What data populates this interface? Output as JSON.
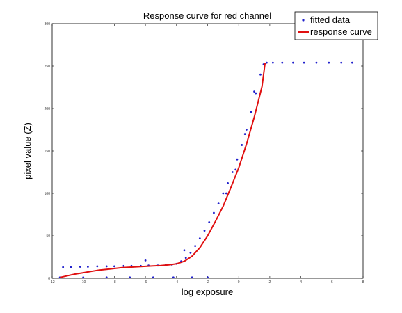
{
  "chart_data": {
    "type": "scatter",
    "title": "Response curve for red channel",
    "xlabel": "log exposure",
    "ylabel": "pixel value (Z)",
    "xlim": [
      -12,
      8
    ],
    "ylim": [
      0,
      300
    ],
    "xticks": [
      -12,
      -10,
      -8,
      -6,
      -4,
      -2,
      0,
      2,
      4,
      6,
      8
    ],
    "yticks": [
      0,
      50,
      100,
      150,
      200,
      250,
      300
    ],
    "grid": false,
    "legend_position": "top-right",
    "colors": {
      "scatter": "#1f1fcc",
      "curve": "#e01010"
    },
    "series": [
      {
        "name": "fitted data",
        "kind": "scatter",
        "note": "dense cloud of points around the response curve",
        "x": [
          -11.3,
          -10.8,
          -10.2,
          -9.7,
          -9.1,
          -8.5,
          -8.0,
          -7.4,
          -6.9,
          -6.3,
          -5.8,
          -5.2,
          -4.7,
          -4.3,
          -4.0,
          -3.7,
          -3.4,
          -3.1,
          -2.8,
          -2.5,
          -2.2,
          -1.9,
          -1.6,
          -1.3,
          -1.0,
          -0.7,
          -0.4,
          -0.1,
          0.2,
          0.5,
          0.8,
          1.1,
          1.4,
          1.6,
          1.8,
          2.2,
          2.8,
          3.5,
          4.2,
          5.0,
          5.8,
          6.6,
          7.3,
          -11.5,
          -10.0,
          -8.5,
          -7.0,
          -5.5,
          -4.2,
          -3.0,
          -2.0,
          -0.2,
          -0.8,
          0.4,
          1.0,
          -6.0,
          -3.5
        ],
        "y": [
          13,
          13,
          13.5,
          13.5,
          14,
          14,
          14,
          14.5,
          14.5,
          14.5,
          15,
          15,
          15.5,
          16,
          17,
          20,
          24,
          30,
          38,
          47,
          56,
          66,
          77,
          88,
          100,
          112,
          125,
          140,
          157,
          175,
          196,
          218,
          240,
          252,
          254,
          254,
          254,
          254,
          254,
          254,
          254,
          254,
          254,
          1,
          1,
          1,
          1,
          1,
          1,
          1,
          1,
          128,
          100,
          170,
          220,
          21,
          33
        ]
      },
      {
        "name": "response curve",
        "kind": "line",
        "x": [
          -11.5,
          -11,
          -10.5,
          -10,
          -9.5,
          -9,
          -8.5,
          -8,
          -7.5,
          -7,
          -6.5,
          -6,
          -5.5,
          -5,
          -4.5,
          -4,
          -3.5,
          -3,
          -2.5,
          -2,
          -1.5,
          -1,
          -0.5,
          0,
          0.5,
          1,
          1.5,
          1.7
        ],
        "y": [
          1,
          3,
          5,
          6.5,
          8,
          9.5,
          10.5,
          11.5,
          12.5,
          13,
          13.5,
          14,
          14.5,
          15,
          15.8,
          17,
          20,
          26,
          36,
          50,
          67,
          85,
          107,
          130,
          158,
          190,
          226,
          254
        ]
      }
    ]
  }
}
